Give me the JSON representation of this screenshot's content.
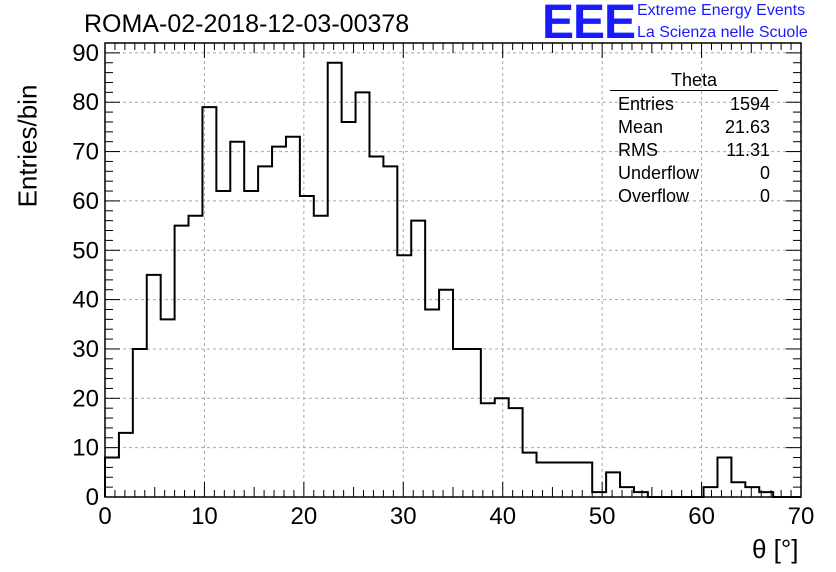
{
  "title": "ROMA-02-2018-12-03-00378",
  "logo": {
    "mark": "EEE",
    "line1": "Extreme Energy Events",
    "line2": "La Scienza nelle Scuole",
    "color": "#1a1aff"
  },
  "chart_data": {
    "type": "bar",
    "style": "step-histogram",
    "title": "ROMA-02-2018-12-03-00378",
    "xlabel": "θ [°]",
    "ylabel": "Entries/bin",
    "xlim": [
      0,
      70
    ],
    "ylim": [
      0,
      92
    ],
    "xticks": [
      0,
      10,
      20,
      30,
      40,
      50,
      60,
      70
    ],
    "yticks": [
      0,
      10,
      20,
      30,
      40,
      50,
      60,
      70,
      80,
      90
    ],
    "grid": true,
    "bin_width": 1.4,
    "series": [
      {
        "name": "Theta",
        "bin_lower_edges": [
          0,
          1.4,
          2.8,
          4.2,
          5.6,
          7.0,
          8.4,
          9.8,
          11.2,
          12.6,
          14.0,
          15.4,
          16.8,
          18.2,
          19.6,
          21.0,
          22.4,
          23.8,
          25.2,
          26.6,
          28.0,
          29.4,
          30.8,
          32.2,
          33.6,
          35.0,
          36.4,
          37.8,
          39.2,
          40.6,
          42.0,
          43.4,
          44.8,
          46.2,
          47.6,
          49.0,
          50.4,
          51.8,
          53.2,
          54.6,
          56.0,
          57.4,
          58.8,
          60.2,
          61.6,
          63.0,
          64.4,
          65.8,
          67.2,
          68.6
        ],
        "values": [
          8,
          13,
          30,
          45,
          36,
          55,
          57,
          79,
          62,
          72,
          62,
          67,
          71,
          73,
          61,
          57,
          88,
          76,
          82,
          69,
          67,
          49,
          56,
          38,
          42,
          30,
          30,
          19,
          20,
          18,
          9,
          7,
          7,
          7,
          7,
          1,
          5,
          2,
          1,
          0,
          0,
          0,
          0,
          2,
          8,
          3,
          2,
          1,
          0,
          0
        ],
        "color": "#000000"
      }
    ],
    "legend": "top-right"
  },
  "stats": {
    "title": "Theta",
    "rows": [
      {
        "label": "Entries",
        "value": "1594"
      },
      {
        "label": "Mean",
        "value": "21.63"
      },
      {
        "label": "RMS",
        "value": "11.31"
      },
      {
        "label": "Underflow",
        "value": "0"
      },
      {
        "label": "Overflow",
        "value": "0"
      }
    ]
  }
}
